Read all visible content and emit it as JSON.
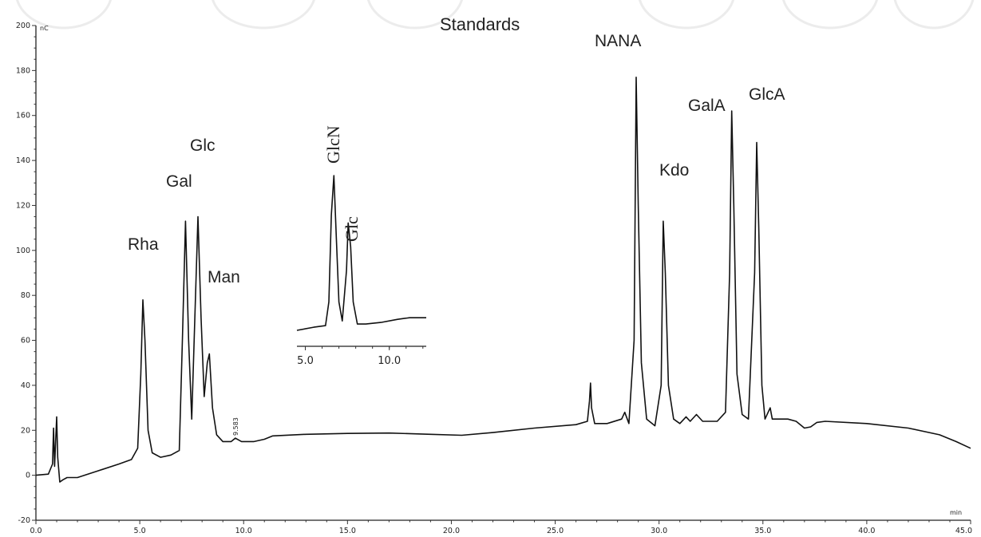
{
  "chart_data": {
    "type": "line",
    "title": "Standards",
    "xlabel": "min",
    "ylabel": "",
    "y_unit_label": "nC",
    "xlim": [
      0,
      45
    ],
    "ylim": [
      -20,
      200
    ],
    "x_ticks": [
      "0.0",
      "5.0",
      "10.0",
      "15.0",
      "20.0",
      "25.0",
      "30.0",
      "35.0",
      "40.0",
      "45.0"
    ],
    "y_ticks": [
      "-20",
      "0",
      "20",
      "40",
      "60",
      "80",
      "100",
      "120",
      "140",
      "160",
      "180",
      "200"
    ],
    "x_tick_values": [
      0,
      5,
      10,
      15,
      20,
      25,
      30,
      35,
      40,
      45
    ],
    "y_tick_values": [
      -20,
      0,
      20,
      40,
      60,
      80,
      100,
      120,
      140,
      160,
      180,
      200
    ],
    "grid": false,
    "series": [
      {
        "points": [
          [
            0,
            0
          ],
          [
            0.6,
            0.5
          ],
          [
            0.8,
            5
          ],
          [
            0.85,
            21
          ],
          [
            0.9,
            4
          ],
          [
            0.95,
            15
          ],
          [
            1.0,
            26
          ],
          [
            1.05,
            8
          ],
          [
            1.15,
            -3
          ],
          [
            1.3,
            -2
          ],
          [
            1.5,
            -1
          ],
          [
            2.0,
            -1
          ],
          [
            3.0,
            2
          ],
          [
            4.0,
            5
          ],
          [
            4.6,
            7
          ],
          [
            4.9,
            12
          ],
          [
            5.05,
            45
          ],
          [
            5.15,
            78
          ],
          [
            5.25,
            60
          ],
          [
            5.4,
            20
          ],
          [
            5.6,
            10
          ],
          [
            6.0,
            8
          ],
          [
            6.5,
            9
          ],
          [
            6.9,
            11
          ],
          [
            7.05,
            60
          ],
          [
            7.2,
            113
          ],
          [
            7.35,
            60
          ],
          [
            7.5,
            25
          ],
          [
            7.65,
            70
          ],
          [
            7.8,
            115
          ],
          [
            7.95,
            70
          ],
          [
            8.1,
            35
          ],
          [
            8.25,
            50
          ],
          [
            8.35,
            54
          ],
          [
            8.5,
            30
          ],
          [
            8.7,
            18
          ],
          [
            9.0,
            15
          ],
          [
            9.4,
            15
          ],
          [
            9.6,
            16.5
          ],
          [
            9.9,
            15
          ],
          [
            10.5,
            15
          ],
          [
            11.0,
            16
          ],
          [
            11.4,
            17.5
          ],
          [
            13.0,
            18.2
          ],
          [
            15.0,
            18.6
          ],
          [
            17.0,
            18.8
          ],
          [
            19.0,
            18.2
          ],
          [
            20.5,
            17.8
          ],
          [
            22.0,
            19
          ],
          [
            24.0,
            21
          ],
          [
            26.0,
            22.5
          ],
          [
            26.55,
            24
          ],
          [
            26.65,
            33
          ],
          [
            26.7,
            41
          ],
          [
            26.75,
            30
          ],
          [
            26.9,
            23
          ],
          [
            27.5,
            23
          ],
          [
            28.2,
            25
          ],
          [
            28.35,
            28
          ],
          [
            28.55,
            23
          ],
          [
            28.8,
            60
          ],
          [
            28.9,
            177
          ],
          [
            29.0,
            120
          ],
          [
            29.15,
            50
          ],
          [
            29.4,
            25
          ],
          [
            29.8,
            22
          ],
          [
            30.1,
            40
          ],
          [
            30.2,
            113
          ],
          [
            30.3,
            90
          ],
          [
            30.45,
            40
          ],
          [
            30.7,
            25
          ],
          [
            31.0,
            23
          ],
          [
            31.3,
            26
          ],
          [
            31.5,
            24
          ],
          [
            31.8,
            27
          ],
          [
            32.1,
            24
          ],
          [
            32.8,
            24
          ],
          [
            33.2,
            28
          ],
          [
            33.4,
            90
          ],
          [
            33.5,
            162
          ],
          [
            33.6,
            120
          ],
          [
            33.75,
            45
          ],
          [
            34.0,
            27
          ],
          [
            34.3,
            25
          ],
          [
            34.6,
            90
          ],
          [
            34.7,
            148
          ],
          [
            34.8,
            110
          ],
          [
            34.95,
            40
          ],
          [
            35.1,
            25
          ],
          [
            35.25,
            28
          ],
          [
            35.35,
            30
          ],
          [
            35.45,
            25
          ],
          [
            36.2,
            25
          ],
          [
            36.6,
            24
          ],
          [
            37.0,
            21
          ],
          [
            37.3,
            21.5
          ],
          [
            37.6,
            23.5
          ],
          [
            38.0,
            24
          ],
          [
            40.0,
            23
          ],
          [
            42.0,
            21
          ],
          [
            43.5,
            18
          ],
          [
            44.3,
            15
          ],
          [
            45.0,
            12
          ]
        ]
      }
    ],
    "peak_labels": [
      {
        "text": "Rha",
        "x": 5.15,
        "y": 78
      },
      {
        "text": "Gal",
        "x": 7.2,
        "y": 113
      },
      {
        "text": "Glc",
        "x": 7.8,
        "y": 115
      },
      {
        "text": "Man",
        "x": 8.35,
        "y": 54
      },
      {
        "text": "NANA",
        "x": 28.9,
        "y": 177
      },
      {
        "text": "Kdo",
        "x": 30.2,
        "y": 113
      },
      {
        "text": "GalA",
        "x": 33.5,
        "y": 162
      },
      {
        "text": "GlcA",
        "x": 34.7,
        "y": 148
      }
    ],
    "minor_annotation": "9.583",
    "inset": {
      "x_ticks": [
        "5.0",
        "10.0"
      ],
      "x_tick_values": [
        5,
        10
      ],
      "xlim": [
        4.5,
        12.2
      ],
      "labels": [
        "GlcN",
        "Glc"
      ],
      "points": [
        [
          4.5,
          2
        ],
        [
          5.5,
          4
        ],
        [
          6.2,
          5
        ],
        [
          6.4,
          20
        ],
        [
          6.55,
          75
        ],
        [
          6.7,
          100
        ],
        [
          6.85,
          60
        ],
        [
          7.0,
          20
        ],
        [
          7.2,
          8
        ],
        [
          7.45,
          40
        ],
        [
          7.55,
          70
        ],
        [
          7.7,
          55
        ],
        [
          7.85,
          20
        ],
        [
          8.1,
          6
        ],
        [
          8.6,
          6
        ],
        [
          9.5,
          7
        ],
        [
          10.5,
          9
        ],
        [
          11.2,
          10
        ],
        [
          12.2,
          10
        ]
      ]
    }
  }
}
